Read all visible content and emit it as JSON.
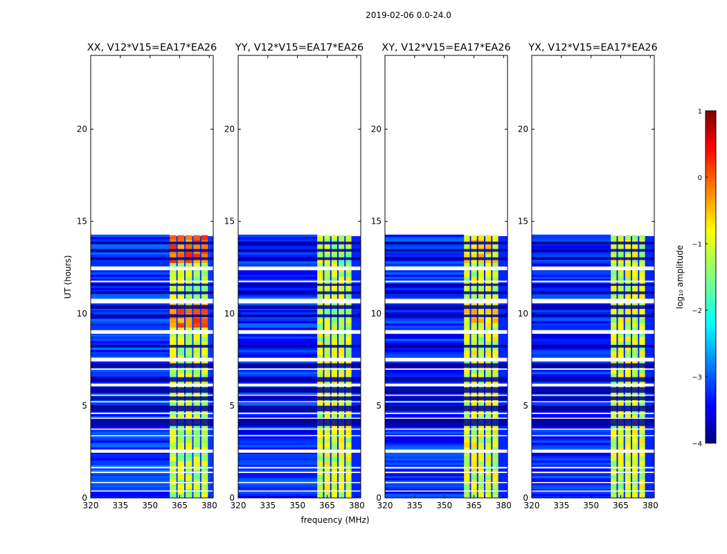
{
  "figure": {
    "suptitle": "2019-02-06 0.0-24.0"
  },
  "chart_data": [
    {
      "type": "heatmap",
      "title": "XX, V12*V15=EA17*EA26",
      "xlabel": "frequency (MHz)",
      "ylabel": "UT (hours)",
      "xlim": [
        320,
        382
      ],
      "ylim": [
        0,
        24
      ],
      "xticks": [
        "320",
        "335",
        "350",
        "365",
        "380"
      ],
      "yticks": [
        "0",
        "5",
        "10",
        "15",
        "20"
      ],
      "data_extent_hours": [
        0,
        14.2
      ],
      "band_start_mhz": 360,
      "band_end_mhz": 380,
      "background_level": -3.1,
      "band_level": -1.2,
      "peak_level": 0.2
    },
    {
      "type": "heatmap",
      "title": "YY, V12*V15=EA17*EA26",
      "xlabel": "frequency (MHz)",
      "ylabel": "UT (hours)",
      "xlim": [
        320,
        382
      ],
      "ylim": [
        0,
        24
      ],
      "xticks": [
        "320",
        "335",
        "350",
        "365",
        "380"
      ],
      "yticks": [
        "0",
        "5",
        "10",
        "15",
        "20"
      ],
      "data_extent_hours": [
        0,
        14.2
      ],
      "band_start_mhz": 360,
      "band_end_mhz": 378,
      "background_level": -3.2,
      "band_level": -1.1,
      "peak_level": -0.9
    },
    {
      "type": "heatmap",
      "title": "XY, V12*V15=EA17*EA26",
      "xlabel": "frequency (MHz)",
      "ylabel": "UT (hours)",
      "xlim": [
        320,
        382
      ],
      "ylim": [
        0,
        24
      ],
      "xticks": [
        "320",
        "335",
        "350",
        "365",
        "380"
      ],
      "yticks": [
        "0",
        "5",
        "10",
        "15",
        "20"
      ],
      "data_extent_hours": [
        0,
        14.2
      ],
      "band_start_mhz": 360,
      "band_end_mhz": 378,
      "background_level": -3.2,
      "band_level": -1.1,
      "peak_level": -0.4
    },
    {
      "type": "heatmap",
      "title": "YX, V12*V15=EA17*EA26",
      "xlabel": "frequency (MHz)",
      "ylabel": "UT (hours)",
      "xlim": [
        320,
        382
      ],
      "ylim": [
        0,
        24
      ],
      "xticks": [
        "320",
        "335",
        "350",
        "365",
        "380"
      ],
      "yticks": [
        "0",
        "5",
        "10",
        "15",
        "20"
      ],
      "data_extent_hours": [
        0,
        14.2
      ],
      "band_start_mhz": 360,
      "band_end_mhz": 378,
      "background_level": -3.2,
      "band_level": -1.1,
      "peak_level": -0.7
    }
  ],
  "flagged_bands_hours": [
    [
      0.35,
      0.4
    ],
    [
      0.8,
      0.86
    ],
    [
      1.35,
      1.42
    ],
    [
      1.6,
      1.68
    ],
    [
      2.45,
      2.62
    ],
    [
      3.35,
      3.4
    ],
    [
      3.7,
      3.76
    ],
    [
      4.3,
      4.35
    ],
    [
      4.55,
      4.62
    ],
    [
      5.2,
      5.24
    ],
    [
      5.55,
      5.6
    ],
    [
      6.05,
      6.2
    ],
    [
      6.95,
      7.02
    ],
    [
      7.4,
      7.6
    ],
    [
      8.9,
      9.1
    ],
    [
      10.55,
      10.8
    ],
    [
      11.7,
      11.78
    ],
    [
      12.35,
      12.55
    ]
  ],
  "dark_bands_hours": [
    [
      3.9,
      4.3
    ],
    [
      4.7,
      5.0
    ],
    [
      5.3,
      5.5
    ],
    [
      5.7,
      6.0
    ],
    [
      6.3,
      6.55
    ],
    [
      7.05,
      7.3
    ],
    [
      8.15,
      8.3
    ],
    [
      9.8,
      9.95
    ],
    [
      10.25,
      10.45
    ],
    [
      11.05,
      11.2
    ],
    [
      11.5,
      11.62
    ],
    [
      12.9,
      13.05
    ],
    [
      13.35,
      13.5
    ],
    [
      13.75,
      13.9
    ]
  ],
  "colorbar": {
    "label": "log₁₀ amplitude",
    "min": -4,
    "max": 1,
    "ticks": [
      "1",
      "0",
      "−1",
      "−2",
      "−3",
      "−4"
    ],
    "tick_values": [
      1,
      0,
      -1,
      -2,
      -3,
      -4
    ]
  }
}
